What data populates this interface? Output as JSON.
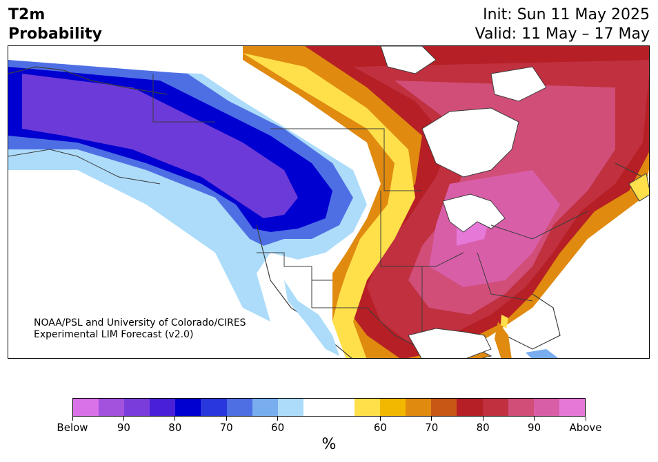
{
  "header": {
    "title_line1": "T2m",
    "title_line2": "Probability",
    "init": "Init: Sun 11 May 2025",
    "valid": "Valid: 11 May – 17 May"
  },
  "credit": {
    "line1": "NOAA/PSL and University of Colorado/CIRES",
    "line2": "Experimental LIM Forecast (v2.0)"
  },
  "legend": {
    "unit": "%",
    "colors": [
      "#d972e8",
      "#a352de",
      "#7a3ddc",
      "#4a1fd8",
      "#0000d0",
      "#2838dc",
      "#4e6fe4",
      "#78aef0",
      "#acdcfa",
      "#ffffff",
      "#ffffff",
      "#ffe04a",
      "#f2b800",
      "#e08a10",
      "#c85716",
      "#b51f25",
      "#c0303e",
      "#d04e78",
      "#d85ea8",
      "#e678d8"
    ],
    "tick_labels": [
      "Below",
      "90",
      "80",
      "70",
      "60",
      "60",
      "70",
      "80",
      "90",
      "Above"
    ]
  },
  "map": {
    "region": "North America",
    "colors": {
      "deep_blue": "#0000d0",
      "purple": "#6b3ad8",
      "blue": "#4e6fe4",
      "light_blue": "#acdcfa",
      "yellow": "#ffe04a",
      "orange": "#e08a10",
      "dark_red": "#b51f25",
      "red": "#c0303e",
      "magenta": "#d04e78",
      "pink": "#d85ea8",
      "water": "#ffffff",
      "border": "#3c3c3c"
    }
  }
}
